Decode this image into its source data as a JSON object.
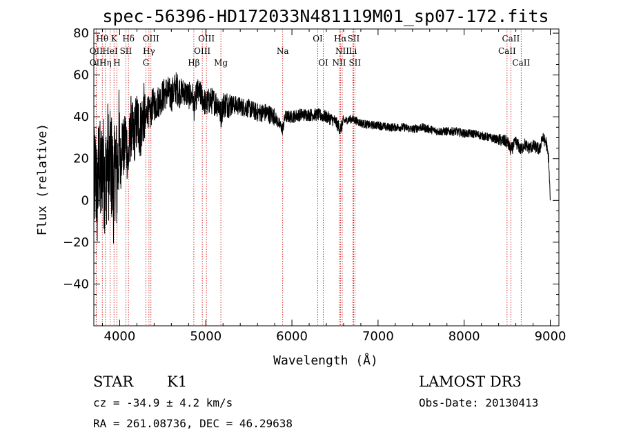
{
  "chart_data": {
    "type": "line",
    "title": "spec-56396-HD172033N481119M01_sp07-172.fits",
    "xlabel": "Wavelength (Å)",
    "ylabel": "Flux (relative)",
    "xlim": [
      3700,
      9100
    ],
    "ylim": [
      -60,
      82
    ],
    "xticks": [
      4000,
      5000,
      6000,
      7000,
      8000,
      9000
    ],
    "yticks": [
      -40,
      -20,
      0,
      20,
      40,
      60,
      80
    ],
    "series": [
      {
        "name": "spectrum",
        "x": [
          3700,
          3720,
          3740,
          3760,
          3780,
          3800,
          3820,
          3840,
          3860,
          3880,
          3900,
          3920,
          3934,
          3950,
          3968,
          3990,
          4010,
          4030,
          4050,
          4070,
          4100,
          4130,
          4160,
          4200,
          4240,
          4280,
          4300,
          4320,
          4350,
          4380,
          4420,
          4460,
          4500,
          4550,
          4600,
          4650,
          4700,
          4750,
          4800,
          4850,
          4861,
          4900,
          4950,
          5000,
          5050,
          5100,
          5150,
          5175,
          5200,
          5300,
          5400,
          5500,
          5600,
          5700,
          5800,
          5860,
          5893,
          5920,
          6000,
          6100,
          6200,
          6300,
          6400,
          6500,
          6563,
          6600,
          6700,
          6800,
          6900,
          7000,
          7100,
          7200,
          7300,
          7400,
          7500,
          7600,
          7700,
          7800,
          7900,
          8000,
          8100,
          8200,
          8300,
          8400,
          8500,
          8542,
          8600,
          8662,
          8700,
          8750,
          8800,
          8850,
          8880,
          8900,
          8950,
          8980,
          9000
        ],
        "values": [
          5,
          12,
          2,
          18,
          8,
          20,
          12,
          10,
          22,
          14,
          18,
          10,
          4,
          22,
          8,
          28,
          18,
          30,
          22,
          32,
          18,
          36,
          30,
          38,
          34,
          42,
          36,
          44,
          40,
          46,
          46,
          48,
          50,
          52,
          50,
          54,
          52,
          52,
          50,
          50,
          44,
          52,
          50,
          46,
          48,
          47,
          46,
          40,
          46,
          46,
          45,
          44,
          42,
          42,
          40,
          36,
          34,
          40,
          40,
          41,
          41,
          41,
          40,
          38,
          34,
          38,
          39,
          37,
          36,
          36,
          35,
          35,
          35,
          34,
          35,
          34,
          33,
          33,
          33,
          32,
          32,
          31,
          30,
          29,
          28,
          24,
          28,
          24,
          27,
          25,
          26,
          25,
          24,
          30,
          28,
          20,
          0
        ]
      }
    ],
    "spectral_lines": [
      {
        "label": "Hθ",
        "x": 3798,
        "row": 0
      },
      {
        "label": "K",
        "x": 3934,
        "row": 0
      },
      {
        "label": "Hδ",
        "x": 4102,
        "row": 0
      },
      {
        "label": "OIII",
        "x": 4363,
        "row": 0
      },
      {
        "label": "OIII",
        "x": 5007,
        "row": 0
      },
      {
        "label": "OI",
        "x": 6300,
        "row": 0
      },
      {
        "label": "Hα",
        "x": 6563,
        "row": 0
      },
      {
        "label": "SII",
        "x": 6716,
        "row": 0
      },
      {
        "label": "CaII",
        "x": 8542,
        "row": 0
      },
      {
        "label": "OII",
        "x": 3727,
        "row": 1
      },
      {
        "label": "HeI",
        "x": 3889,
        "row": 1
      },
      {
        "label": "SII",
        "x": 4072,
        "row": 1
      },
      {
        "label": "Hγ",
        "x": 4340,
        "row": 1
      },
      {
        "label": "OIII",
        "x": 4959,
        "row": 1
      },
      {
        "label": "Na",
        "x": 5893,
        "row": 1
      },
      {
        "label": "NII",
        "x": 6584,
        "row": 1
      },
      {
        "label": "Li",
        "x": 6708,
        "row": 1
      },
      {
        "label": "CaII",
        "x": 8498,
        "row": 1
      },
      {
        "label": "OII",
        "x": 3727,
        "row": 2
      },
      {
        "label": "Hη",
        "x": 3835,
        "row": 2
      },
      {
        "label": "H",
        "x": 3968,
        "row": 2
      },
      {
        "label": "G",
        "x": 4304,
        "row": 2
      },
      {
        "label": "Hβ",
        "x": 4861,
        "row": 2
      },
      {
        "label": "Mg",
        "x": 5175,
        "row": 2
      },
      {
        "label": "OI",
        "x": 6364,
        "row": 2
      },
      {
        "label": "NII",
        "x": 6548,
        "row": 2
      },
      {
        "label": "SII",
        "x": 6731,
        "row": 2
      },
      {
        "label": "CaII",
        "x": 8662,
        "row": 2
      }
    ],
    "line_color": "#cc0000",
    "spectrum_color": "#000000"
  },
  "info": {
    "object_class": "STAR",
    "subclass": "K1",
    "survey": "LAMOST DR3",
    "cz": "cz = -34.9 ± 4.2 km/s",
    "obs_date": "Obs-Date: 20130413",
    "coords": "RA = 261.08736, DEC =  46.29638"
  }
}
